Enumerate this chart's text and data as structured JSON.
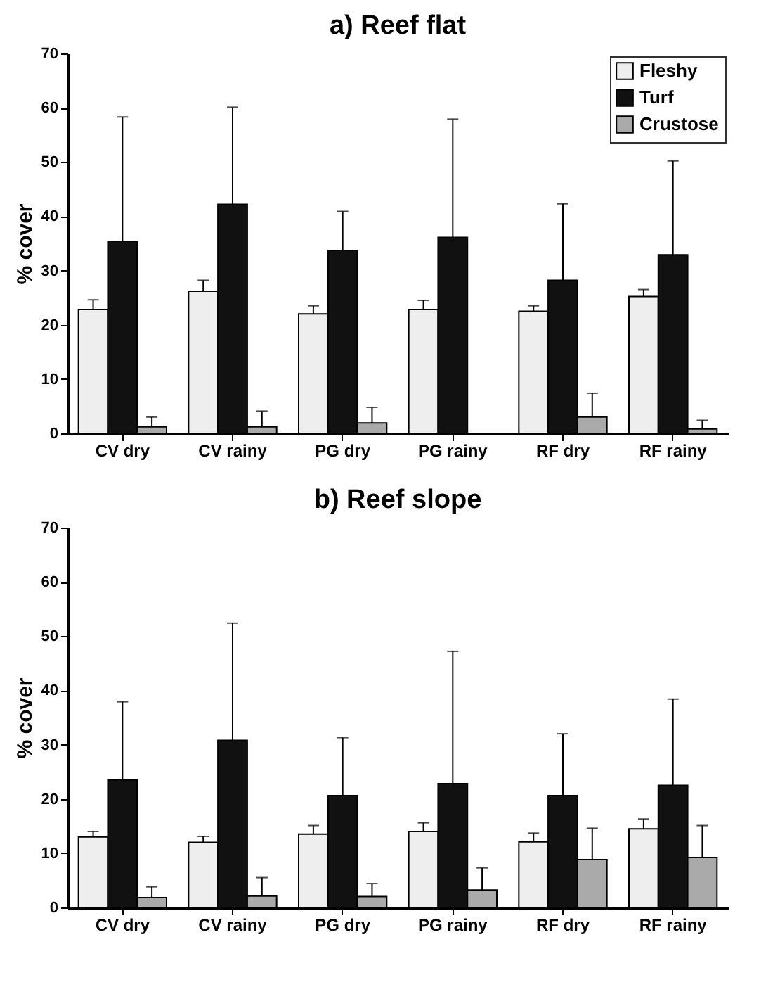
{
  "chart_data": [
    {
      "type": "bar",
      "title": "a) Reef flat",
      "ylabel": "% cover",
      "categories": [
        "CV dry",
        "CV rainy",
        "PG dry",
        "PG rainy",
        "RF dry",
        "RF rainy"
      ],
      "ylim": [
        0,
        70
      ],
      "yticks": [
        0,
        10,
        20,
        30,
        40,
        50,
        60,
        70
      ],
      "legend": "top right",
      "series": [
        {
          "name": "Fleshy",
          "color": "#eeeeee",
          "values": [
            22.8,
            26.2,
            22.0,
            22.8,
            22.5,
            25.2
          ],
          "errors": [
            [
              22.8,
              24.6
            ],
            [
              26.2,
              28.2
            ],
            [
              22.0,
              23.5
            ],
            [
              22.8,
              24.5
            ],
            [
              22.5,
              23.5
            ],
            [
              25.2,
              26.5
            ]
          ]
        },
        {
          "name": "Turf",
          "color": "#111111",
          "values": [
            35.4,
            42.2,
            33.7,
            36.1,
            28.2,
            32.9
          ],
          "errors": [
            [
              35.4,
              58.3
            ],
            [
              42.2,
              60.1
            ],
            [
              33.7,
              40.9
            ],
            [
              36.1,
              57.9
            ],
            [
              28.2,
              42.3
            ],
            [
              32.9,
              50.2
            ]
          ]
        },
        {
          "name": "Crustose",
          "color": "#aaaaaa",
          "values": [
            1.2,
            1.2,
            1.9,
            null,
            3.0,
            0.8
          ],
          "errors": [
            [
              1.2,
              3.0
            ],
            [
              1.2,
              4.1
            ],
            [
              1.9,
              4.8
            ],
            null,
            [
              3.0,
              7.4
            ],
            [
              0.8,
              2.4
            ]
          ]
        }
      ]
    },
    {
      "type": "bar",
      "title": "b) Reef slope",
      "ylabel": "% cover",
      "categories": [
        "CV dry",
        "CV rainy",
        "PG dry",
        "PG rainy",
        "RF dry",
        "RF rainy"
      ],
      "ylim": [
        0,
        70
      ],
      "yticks": [
        0,
        10,
        20,
        30,
        40,
        50,
        60,
        70
      ],
      "legend": "top right",
      "series": [
        {
          "name": "Fleshy",
          "color": "#eeeeee",
          "values": [
            13.0,
            12.0,
            13.5,
            14.0,
            12.1,
            14.5
          ],
          "errors": [
            [
              13.0,
              14.0
            ],
            [
              12.0,
              13.1
            ],
            [
              13.5,
              15.1
            ],
            [
              14.0,
              15.6
            ],
            [
              12.1,
              13.7
            ],
            [
              14.5,
              16.3
            ]
          ]
        },
        {
          "name": "Turf",
          "color": "#111111",
          "values": [
            23.5,
            30.8,
            20.6,
            22.8,
            20.6,
            22.5
          ],
          "errors": [
            [
              23.5,
              37.9
            ],
            [
              30.8,
              52.4
            ],
            [
              20.6,
              31.3
            ],
            [
              22.8,
              47.2
            ],
            [
              20.6,
              32.0
            ],
            [
              22.5,
              38.4
            ]
          ]
        },
        {
          "name": "Crustose",
          "color": "#aaaaaa",
          "values": [
            1.8,
            2.1,
            2.0,
            3.2,
            8.8,
            9.2
          ],
          "errors": [
            [
              1.8,
              3.8
            ],
            [
              2.1,
              5.5
            ],
            [
              2.0,
              4.4
            ],
            [
              3.2,
              7.3
            ],
            [
              8.8,
              14.6
            ],
            [
              9.2,
              15.1
            ]
          ]
        }
      ]
    }
  ]
}
